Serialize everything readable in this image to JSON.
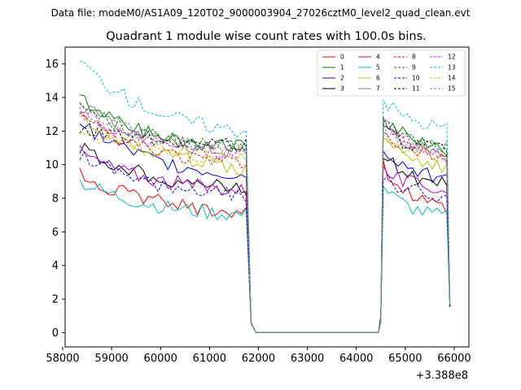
{
  "chart_data": {
    "type": "line",
    "suptitle": "Data file: modeM0/AS1A09_120T02_9000003904_27026cztM0_level2_quad_clean.evt",
    "title": "Quadrant 1 module wise count rates with 100.0s bins.",
    "xlabel": "",
    "ylabel": "",
    "x_offset_label": "+3.388e8",
    "xlim": [
      58050,
      66300
    ],
    "ylim": [
      -0.85,
      17.0
    ],
    "xticks": [
      58000,
      59000,
      60000,
      61000,
      62000,
      63000,
      64000,
      65000,
      66000
    ],
    "yticks": [
      0,
      2,
      4,
      6,
      8,
      10,
      12,
      14,
      16
    ],
    "segments": [
      {
        "start": 58350,
        "end": 61750
      },
      {
        "start": 64550,
        "end": 65850
      }
    ],
    "gap": {
      "from": 61850,
      "to": 64450
    },
    "legend_position": "top-right",
    "legend_columns": 4,
    "series": [
      {
        "name": "0",
        "color": "#ff0000",
        "dash": "solid",
        "seg1": [
          9.4,
          7.2
        ],
        "seg2": [
          10.0,
          7.3
        ]
      },
      {
        "name": "1",
        "color": "#008000",
        "dash": "solid",
        "seg1": [
          14.0,
          11.0
        ],
        "seg2": [
          12.8,
          11.0
        ]
      },
      {
        "name": "2",
        "color": "#0000ff",
        "dash": "solid",
        "seg1": [
          12.5,
          9.3
        ],
        "seg2": [
          11.0,
          9.2
        ]
      },
      {
        "name": "3",
        "color": "#000000",
        "dash": "solid",
        "seg1": [
          11.0,
          8.6
        ],
        "seg2": [
          10.8,
          8.8
        ]
      },
      {
        "name": "4",
        "color": "#bf00bf",
        "dash": "solid",
        "seg1": [
          10.8,
          8.5
        ],
        "seg2": [
          9.7,
          8.6
        ]
      },
      {
        "name": "5",
        "color": "#00bfbf",
        "dash": "solid",
        "seg1": [
          9.0,
          7.0
        ],
        "seg2": [
          8.7,
          6.9
        ]
      },
      {
        "name": "6",
        "color": "#bfbf00",
        "dash": "solid",
        "seg1": [
          13.0,
          9.8
        ],
        "seg2": [
          11.8,
          9.9
        ]
      },
      {
        "name": "7",
        "color": "#808080",
        "dash": "solid",
        "seg1": [
          13.5,
          10.8
        ],
        "seg2": [
          12.4,
          10.6
        ]
      },
      {
        "name": "8",
        "color": "#ff0000",
        "dash": "dashed",
        "seg1": [
          12.8,
          10.0
        ],
        "seg2": [
          11.8,
          10.4
        ]
      },
      {
        "name": "9",
        "color": "#008000",
        "dash": "dashed",
        "seg1": [
          13.6,
          10.9
        ],
        "seg2": [
          12.6,
          11.1
        ]
      },
      {
        "name": "10",
        "color": "#0000ff",
        "dash": "dashed",
        "seg1": [
          10.5,
          8.2
        ],
        "seg2": [
          9.3,
          8.1
        ]
      },
      {
        "name": "11",
        "color": "#000000",
        "dash": "dashed",
        "seg1": [
          12.3,
          11.2
        ],
        "seg2": [
          12.0,
          10.9
        ]
      },
      {
        "name": "12",
        "color": "#ff00ff",
        "dash": "dashed",
        "seg1": [
          13.2,
          10.6
        ],
        "seg2": [
          12.5,
          10.6
        ]
      },
      {
        "name": "13",
        "color": "#00bfbf",
        "dash": "dashed",
        "seg1": [
          16.2,
          12.0
        ],
        "seg2": [
          13.9,
          12.2
        ]
      },
      {
        "name": "14",
        "color": "#bfbf00",
        "dash": "dashed",
        "seg1": [
          12.2,
          10.3
        ],
        "seg2": [
          11.9,
          10.3
        ]
      },
      {
        "name": "15",
        "color": "#808080",
        "dash": "dashed",
        "seg1": [
          13.3,
          10.9
        ],
        "seg2": [
          12.1,
          10.7
        ]
      }
    ]
  }
}
